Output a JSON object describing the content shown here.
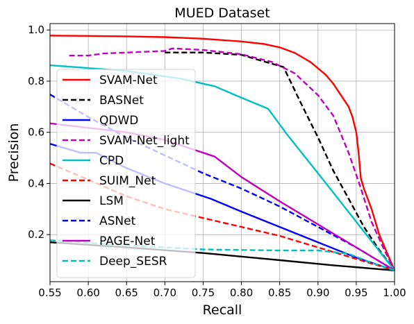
{
  "chart_data": {
    "type": "line",
    "title": "MUED Dataset",
    "xlabel": "Recall",
    "ylabel": "Precision",
    "xlim": [
      0.55,
      1.0
    ],
    "ylim": [
      0.016,
      1.025
    ],
    "grid": true,
    "legend_position": "lower-left, overlapping plot",
    "xticks": [
      "0.55",
      "0.60",
      "0.65",
      "0.70",
      "0.75",
      "0.80",
      "0.85",
      "0.90",
      "0.95",
      "1.00"
    ],
    "xtick_values": [
      0.55,
      0.6,
      0.65,
      0.7,
      0.75,
      0.8,
      0.85,
      0.9,
      0.95,
      1.0
    ],
    "yticks": [
      "0.2",
      "0.4",
      "0.6",
      "0.8",
      "1.0"
    ],
    "ytick_values": [
      0.2,
      0.4,
      0.6,
      0.8,
      1.0
    ],
    "series": [
      {
        "name": "SVAM-Net",
        "color": "#ff0000",
        "dash": "solid",
        "points": [
          [
            0.55,
            0.978
          ],
          [
            0.65,
            0.975
          ],
          [
            0.7,
            0.972
          ],
          [
            0.75,
            0.966
          ],
          [
            0.8,
            0.955
          ],
          [
            0.83,
            0.945
          ],
          [
            0.85,
            0.932
          ],
          [
            0.87,
            0.91
          ],
          [
            0.89,
            0.875
          ],
          [
            0.91,
            0.825
          ],
          [
            0.92,
            0.79
          ],
          [
            0.93,
            0.745
          ],
          [
            0.94,
            0.7
          ],
          [
            0.945,
            0.66
          ],
          [
            0.95,
            0.6
          ],
          [
            0.953,
            0.52
          ],
          [
            0.956,
            0.42
          ],
          [
            0.96,
            0.38
          ],
          [
            0.97,
            0.3
          ],
          [
            0.98,
            0.2
          ],
          [
            0.99,
            0.13
          ],
          [
            1.0,
            0.06
          ]
        ]
      },
      {
        "name": "BASNet",
        "color": "#000000",
        "dash": "dashed",
        "points": [
          [
            0.7,
            0.912
          ],
          [
            0.75,
            0.912
          ],
          [
            0.8,
            0.903
          ],
          [
            0.82,
            0.885
          ],
          [
            0.84,
            0.868
          ],
          [
            0.855,
            0.855
          ],
          [
            0.88,
            0.7
          ],
          [
            0.9,
            0.58
          ],
          [
            0.92,
            0.45
          ],
          [
            0.94,
            0.34
          ],
          [
            0.96,
            0.23
          ],
          [
            0.98,
            0.14
          ],
          [
            1.0,
            0.06
          ]
        ]
      },
      {
        "name": "QDWD",
        "color": "#0000ff",
        "dash": "solid",
        "points": [
          [
            0.55,
            0.555
          ],
          [
            0.59,
            0.52
          ],
          [
            0.61,
            0.52
          ],
          [
            0.65,
            0.46
          ],
          [
            0.7,
            0.4
          ],
          [
            0.76,
            0.34
          ],
          [
            0.8,
            0.29
          ],
          [
            0.85,
            0.23
          ],
          [
            0.9,
            0.17
          ],
          [
            0.95,
            0.11
          ],
          [
            1.0,
            0.06
          ]
        ]
      },
      {
        "name": "SVAM-Net_light",
        "color": "#bf00bf",
        "dash": "dashed",
        "points": [
          [
            0.575,
            0.9
          ],
          [
            0.6,
            0.9
          ],
          [
            0.62,
            0.908
          ],
          [
            0.65,
            0.912
          ],
          [
            0.7,
            0.918
          ],
          [
            0.71,
            0.928
          ],
          [
            0.75,
            0.922
          ],
          [
            0.8,
            0.905
          ],
          [
            0.84,
            0.875
          ],
          [
            0.87,
            0.83
          ],
          [
            0.9,
            0.745
          ],
          [
            0.92,
            0.665
          ],
          [
            0.94,
            0.52
          ],
          [
            0.955,
            0.39
          ],
          [
            0.97,
            0.25
          ],
          [
            0.985,
            0.15
          ],
          [
            1.0,
            0.06
          ]
        ]
      },
      {
        "name": "CPD",
        "color": "#00bfbf",
        "dash": "solid",
        "points": [
          [
            0.55,
            0.862
          ],
          [
            0.65,
            0.84
          ],
          [
            0.72,
            0.81
          ],
          [
            0.765,
            0.78
          ],
          [
            0.8,
            0.735
          ],
          [
            0.835,
            0.692
          ],
          [
            0.86,
            0.59
          ],
          [
            0.9,
            0.44
          ],
          [
            0.95,
            0.25
          ],
          [
            1.0,
            0.06
          ]
        ]
      },
      {
        "name": "SUIM_Net",
        "color": "#ff0000",
        "dash": "dashed",
        "points": [
          [
            0.55,
            0.478
          ],
          [
            0.6,
            0.415
          ],
          [
            0.65,
            0.35
          ],
          [
            0.7,
            0.3
          ],
          [
            0.75,
            0.265
          ],
          [
            0.8,
            0.23
          ],
          [
            0.85,
            0.195
          ],
          [
            0.9,
            0.15
          ],
          [
            0.95,
            0.105
          ],
          [
            1.0,
            0.06
          ]
        ]
      },
      {
        "name": "LSM",
        "color": "#000000",
        "dash": "solid",
        "points": [
          [
            0.55,
            0.17
          ],
          [
            0.65,
            0.15
          ],
          [
            0.75,
            0.128
          ],
          [
            0.85,
            0.1
          ],
          [
            0.92,
            0.08
          ],
          [
            1.0,
            0.06
          ]
        ]
      },
      {
        "name": "ASNet",
        "color": "#0000ff",
        "dash": "dashed",
        "points": [
          [
            0.55,
            0.748
          ],
          [
            0.6,
            0.66
          ],
          [
            0.65,
            0.58
          ],
          [
            0.7,
            0.51
          ],
          [
            0.75,
            0.44
          ],
          [
            0.8,
            0.38
          ],
          [
            0.85,
            0.31
          ],
          [
            0.9,
            0.23
          ],
          [
            0.95,
            0.15
          ],
          [
            1.0,
            0.06
          ]
        ]
      },
      {
        "name": "PAGE-Net",
        "color": "#bf00bf",
        "dash": "solid",
        "points": [
          [
            0.55,
            0.635
          ],
          [
            0.65,
            0.6
          ],
          [
            0.7,
            0.57
          ],
          [
            0.765,
            0.505
          ],
          [
            0.8,
            0.425
          ],
          [
            0.85,
            0.33
          ],
          [
            0.9,
            0.24
          ],
          [
            0.95,
            0.15
          ],
          [
            1.0,
            0.06
          ]
        ]
      },
      {
        "name": "Deep_SESR",
        "color": "#00bfbf",
        "dash": "dashed",
        "points": [
          [
            0.55,
            0.178
          ],
          [
            0.65,
            0.158
          ],
          [
            0.75,
            0.142
          ],
          [
            0.8,
            0.14
          ],
          [
            0.85,
            0.138
          ],
          [
            0.9,
            0.138
          ],
          [
            0.94,
            0.125
          ],
          [
            0.97,
            0.09
          ],
          [
            1.0,
            0.06
          ]
        ]
      }
    ]
  }
}
